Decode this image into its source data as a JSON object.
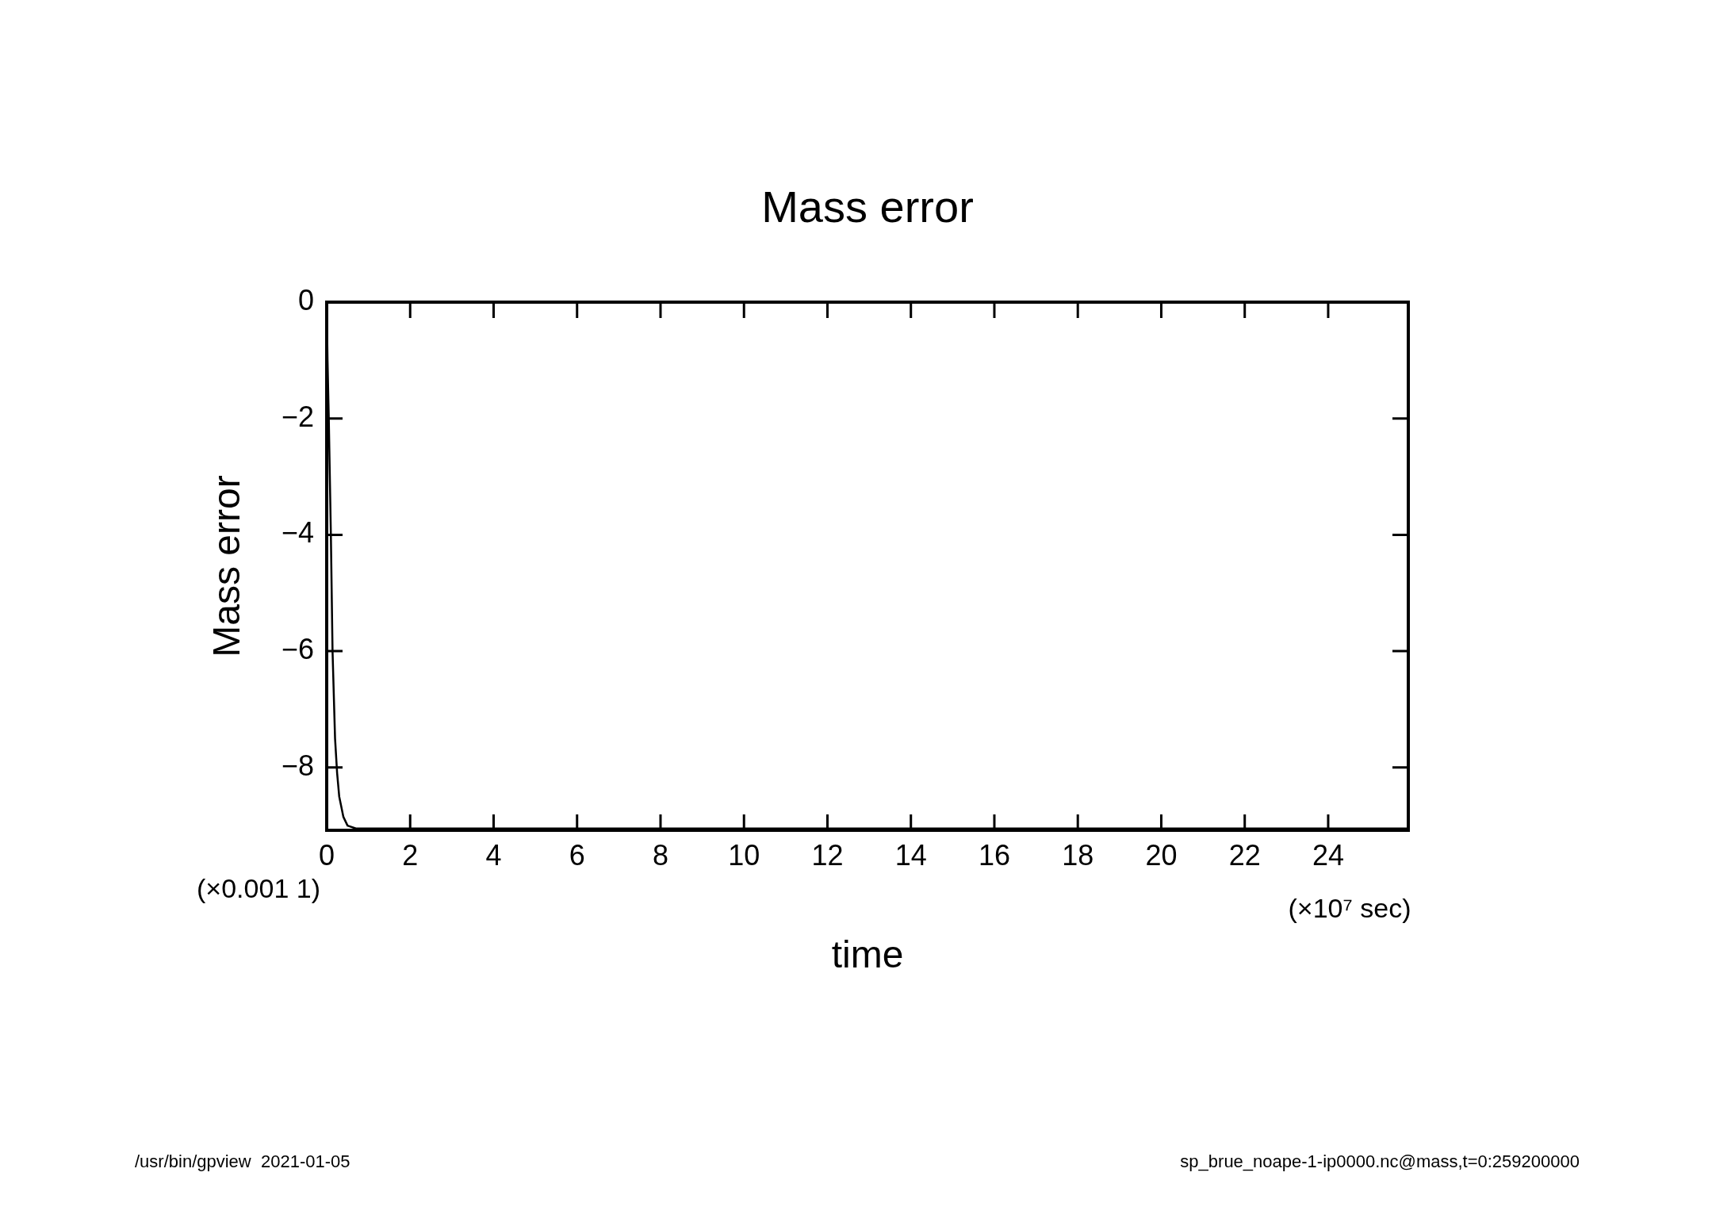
{
  "chart_data": {
    "type": "line",
    "title": "Mass error",
    "xlabel": "time",
    "ylabel": "Mass error",
    "annotations": [
      "(×0.001 1)",
      "(×10⁷ sec)",
      "/usr/bin/gpview  2021-01-05",
      "sp_brue_noape-1-ip0000.nc@mass,t=0:259200000"
    ],
    "x": [
      0,
      0.02,
      0.05,
      0.1,
      0.14,
      0.2,
      0.25,
      0.3,
      0.4,
      0.5,
      0.7,
      1,
      5,
      10,
      15,
      20,
      25.92
    ],
    "series": [
      {
        "color": "#000000",
        "values": [
          0,
          -1,
          -2,
          -4,
          -6,
          -7.5,
          -8.1,
          -8.5,
          -8.85,
          -9,
          -9.05,
          -9.05,
          -9.05,
          -9.05,
          -9.05,
          -9.05,
          -9.05
        ]
      }
    ],
    "xlim": [
      0,
      25.92
    ],
    "xticks": [
      0,
      2,
      4,
      6,
      8,
      10,
      12,
      14,
      16,
      18,
      20,
      22,
      24
    ],
    "ylim": [
      -9.08,
      0
    ],
    "yticks": [
      0,
      -2,
      -4,
      -6,
      -8
    ],
    "grid": false,
    "legend": false,
    "marker": "none",
    "line_style": "solid"
  }
}
